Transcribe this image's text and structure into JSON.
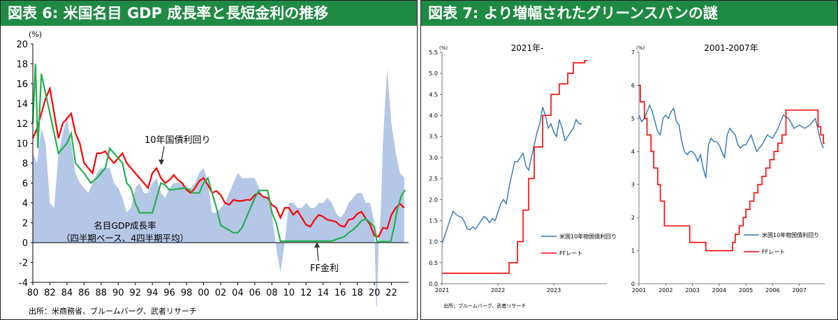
{
  "panels": {
    "left": {
      "title": "図表 6: 米国名目 GDP 成長率と長短金利の推移",
      "source": "出所：米商務省、ブルームバーグ、武者リサーチ"
    },
    "right": {
      "title": "図表 7: より増幅されたグリーンスパンの謎",
      "source": "出所：ブルームバーグ、武者リサーチ"
    }
  },
  "colors": {
    "title_bg": "#1f8a43",
    "gdp_area": "#b4c7e7",
    "bond": "#ff0000",
    "ff": "#22b14c",
    "bond_blue": "#2e75b6",
    "ff_red": "#ff0000"
  },
  "chart_data": [
    {
      "type": "area",
      "title": "",
      "ylabel": "(%)",
      "ylim": [
        -4,
        20
      ],
      "yticks": [
        "20",
        "18",
        "16",
        "14",
        "12",
        "10",
        "8",
        "6",
        "4",
        "2",
        "0",
        "-2",
        "-4"
      ],
      "xlim": [
        1980,
        2024
      ],
      "xticks": [
        "80",
        "82",
        "84",
        "86",
        "88",
        "90",
        "92",
        "94",
        "96",
        "98",
        "00",
        "02",
        "04",
        "06",
        "08",
        "10",
        "12",
        "14",
        "16",
        "18",
        "20",
        "22"
      ],
      "annotations": {
        "bond": "10年国債利回り",
        "gdp_line1": "名目GDP成長率",
        "gdp_line2": "（四半期ベース、4四半期平均）",
        "ff": "FF金利"
      },
      "series": [
        {
          "name": "名目GDP成長率（四半期ベース、4四半期平均）",
          "x": [
            1980,
            1980.5,
            1981,
            1981.5,
            1982,
            1982.5,
            1983,
            1983.5,
            1984,
            1984.5,
            1985,
            1985.5,
            1986,
            1986.5,
            1987,
            1987.5,
            1988,
            1988.5,
            1989,
            1989.5,
            1990,
            1990.5,
            1991,
            1991.5,
            1992,
            1992.5,
            1993,
            1993.5,
            1994,
            1994.5,
            1995,
            1995.5,
            1996,
            1996.5,
            1997,
            1997.5,
            1998,
            1998.5,
            1999,
            1999.5,
            2000,
            2000.5,
            2001,
            2001.5,
            2002,
            2002.5,
            2003,
            2003.5,
            2004,
            2004.5,
            2005,
            2005.5,
            2006,
            2006.5,
            2007,
            2007.5,
            2008,
            2008.3,
            2008.6,
            2009,
            2009.5,
            2010,
            2010.5,
            2011,
            2011.5,
            2012,
            2012.5,
            2013,
            2013.5,
            2014,
            2014.5,
            2015,
            2015.5,
            2016,
            2016.5,
            2017,
            2017.5,
            2018,
            2018.5,
            2019,
            2019.5,
            2020,
            2020.25,
            2020.5,
            2020.75,
            2021,
            2021.25,
            2021.5,
            2022,
            2022.5,
            2023,
            2023.5
          ],
          "values": [
            9,
            8,
            11.5,
            10,
            4,
            3.5,
            9,
            11,
            12.5,
            10,
            7,
            6,
            5.5,
            5,
            6,
            7,
            7.5,
            7.5,
            7.5,
            6,
            5.5,
            4.5,
            3,
            3.5,
            5.5,
            6,
            5,
            5,
            6,
            6.5,
            5,
            4.5,
            5.5,
            6,
            6,
            6,
            5.5,
            5.5,
            6,
            7,
            7.5,
            6,
            3,
            3,
            3.5,
            4,
            5,
            6,
            7,
            6.5,
            6.5,
            6.5,
            6.5,
            5.5,
            4.5,
            4.5,
            3,
            1,
            -1,
            -3,
            0,
            4,
            4,
            3.5,
            3.5,
            4,
            3.5,
            3.5,
            4,
            4,
            4.5,
            4,
            3,
            2.5,
            3,
            4,
            4.5,
            5,
            5,
            4,
            4,
            2,
            -8,
            0,
            3,
            10,
            14,
            17.5,
            12,
            9,
            7,
            6.5
          ]
        },
        {
          "name": "10年国債利回り",
          "x": [
            1980,
            1980.5,
            1981,
            1981.5,
            1982,
            1982.5,
            1983,
            1983.5,
            1984,
            1984.5,
            1985,
            1985.5,
            1986,
            1986.5,
            1987,
            1987.5,
            1988,
            1988.5,
            1989,
            1989.5,
            1990,
            1990.5,
            1991,
            1991.5,
            1992,
            1992.5,
            1993,
            1993.5,
            1994,
            1994.5,
            1995,
            1995.5,
            1996,
            1996.5,
            1997,
            1997.5,
            1998,
            1998.5,
            1999,
            1999.5,
            2000,
            2000.5,
            2001,
            2001.5,
            2002,
            2002.5,
            2003,
            2003.5,
            2004,
            2004.5,
            2005,
            2005.5,
            2006,
            2006.5,
            2007,
            2007.5,
            2008,
            2008.5,
            2009,
            2009.5,
            2010,
            2010.5,
            2011,
            2011.5,
            2012,
            2012.5,
            2013,
            2013.5,
            2014,
            2014.5,
            2015,
            2015.5,
            2016,
            2016.5,
            2017,
            2017.5,
            2018,
            2018.5,
            2019,
            2019.5,
            2020,
            2020.5,
            2021,
            2021.5,
            2022,
            2022.5,
            2023,
            2023.5
          ],
          "values": [
            10.5,
            11.5,
            13,
            14.5,
            15.5,
            13,
            10.5,
            12,
            12.5,
            13,
            11,
            10,
            8,
            7.5,
            7,
            9,
            9,
            9.2,
            8.5,
            8,
            8.5,
            9,
            8,
            7.5,
            7,
            6.5,
            6,
            5.5,
            7,
            7.5,
            6.5,
            6,
            6.3,
            6.8,
            6.3,
            6,
            5.3,
            5,
            5.5,
            6.2,
            6.5,
            5.8,
            5,
            5.2,
            4.8,
            4,
            3.8,
            4.3,
            4.2,
            4.2,
            4.3,
            4.3,
            4.8,
            5,
            4.6,
            4.5,
            3.8,
            3.5,
            2.5,
            3.5,
            3.5,
            2.8,
            3.2,
            2.5,
            1.8,
            1.6,
            2.3,
            2.8,
            2.6,
            2.3,
            2.2,
            2.1,
            1.7,
            1.6,
            2.3,
            2.4,
            2.9,
            3.1,
            2.4,
            1.8,
            0.7,
            0.6,
            1.5,
            1.4,
            2.8,
            3.5,
            3.9,
            3.5
          ]
        },
        {
          "name": "FF金利",
          "x": [
            1980,
            1980.3,
            1980.6,
            1981,
            1981.5,
            1982,
            1982.5,
            1983,
            1984,
            1984.5,
            1985,
            1986,
            1986.8,
            1987.5,
            1988.5,
            1989,
            1989.5,
            1990.5,
            1991,
            1991.5,
            1992,
            1992.5,
            1993,
            1994,
            1994.5,
            1995,
            1995.5,
            1996,
            1998,
            1998.8,
            1999.5,
            2000,
            2000.5,
            2001,
            2001.5,
            2002,
            2003,
            2003.5,
            2004,
            2004.5,
            2005,
            2005.5,
            2006,
            2006.5,
            2007.5,
            2008,
            2008.5,
            2009,
            2015,
            2015.8,
            2016.5,
            2017,
            2017.5,
            2018,
            2018.5,
            2019,
            2019.5,
            2020,
            2020.3,
            2021.9,
            2022,
            2022.3,
            2022.6,
            2022.9,
            2023.2,
            2023.6
          ],
          "values": [
            12,
            18,
            9.5,
            17,
            15,
            13,
            11,
            9,
            10,
            11,
            8,
            7,
            6,
            6.5,
            7.5,
            9.5,
            9,
            8,
            6,
            5.5,
            4,
            3,
            3,
            3,
            4.5,
            6,
            5.8,
            5.3,
            5.5,
            5,
            5,
            6,
            6.5,
            5,
            3.5,
            1.75,
            1.25,
            1,
            1,
            1.5,
            2.5,
            3.5,
            4.5,
            5.25,
            5.25,
            3,
            2,
            0.15,
            0.15,
            0.4,
            0.6,
            1,
            1.3,
            1.7,
            2.2,
            2.4,
            2,
            1.6,
            0.1,
            0.1,
            0.4,
            1.5,
            3,
            4,
            4.8,
            5.3
          ]
        }
      ]
    },
    {
      "type": "line",
      "title": "2021年-",
      "ylabel": "(%)",
      "ylim": [
        0,
        5.5
      ],
      "yticks": [
        "5.5",
        "5.0",
        "4.5",
        "4.0",
        "3.5",
        "3.0",
        "2.5",
        "2.0",
        "1.5",
        "1.0",
        "0.5",
        "0.0"
      ],
      "xlim": [
        2021.0,
        2023.95
      ],
      "xticks": [
        "2021",
        "2022",
        "2023"
      ],
      "series": [
        {
          "name": "米国10年物国債利回り",
          "x": [
            2021.0,
            2021.05,
            2021.1,
            2021.15,
            2021.2,
            2021.25,
            2021.3,
            2021.35,
            2021.4,
            2021.45,
            2021.5,
            2021.55,
            2021.6,
            2021.65,
            2021.7,
            2021.75,
            2021.8,
            2021.85,
            2021.9,
            2021.95,
            2022.0,
            2022.05,
            2022.1,
            2022.15,
            2022.2,
            2022.25,
            2022.3,
            2022.35,
            2022.4,
            2022.45,
            2022.5,
            2022.55,
            2022.6,
            2022.65,
            2022.7,
            2022.75,
            2022.8,
            2022.85,
            2022.9,
            2022.95,
            2023.0,
            2023.05,
            2023.1,
            2023.15,
            2023.2,
            2023.25,
            2023.3,
            2023.35,
            2023.4,
            2023.45,
            2023.5
          ],
          "values": [
            0.95,
            1.15,
            1.35,
            1.55,
            1.72,
            1.65,
            1.6,
            1.58,
            1.48,
            1.3,
            1.28,
            1.35,
            1.3,
            1.4,
            1.5,
            1.6,
            1.55,
            1.45,
            1.55,
            1.5,
            1.7,
            1.9,
            2.0,
            1.9,
            2.3,
            2.6,
            2.9,
            2.9,
            3.0,
            3.1,
            2.8,
            2.7,
            3.0,
            3.3,
            3.6,
            3.8,
            4.2,
            4.0,
            3.7,
            3.8,
            3.6,
            3.5,
            3.9,
            3.7,
            3.4,
            3.5,
            3.6,
            3.7,
            3.9,
            3.8,
            3.8
          ]
        },
        {
          "name": "FFレート",
          "x": [
            2021.0,
            2022.2,
            2022.2,
            2022.35,
            2022.35,
            2022.45,
            2022.45,
            2022.55,
            2022.55,
            2022.65,
            2022.65,
            2022.8,
            2022.8,
            2022.95,
            2022.95,
            2023.1,
            2023.1,
            2023.25,
            2023.25,
            2023.35,
            2023.35,
            2023.55,
            2023.55,
            2023.6
          ],
          "values": [
            0.25,
            0.25,
            0.5,
            0.5,
            1.0,
            1.0,
            1.75,
            1.75,
            2.5,
            2.5,
            3.25,
            3.25,
            4.0,
            4.0,
            4.5,
            4.5,
            4.75,
            4.75,
            5.0,
            5.0,
            5.25,
            5.25,
            5.3,
            5.3
          ]
        }
      ]
    },
    {
      "type": "line",
      "title": "2001-2007年",
      "ylabel": "(%)",
      "ylim": [
        0,
        7
      ],
      "yticks": [
        "7",
        "6",
        "5",
        "4",
        "3",
        "2",
        "1",
        "0"
      ],
      "xlim": [
        2001.0,
        2007.95
      ],
      "xticks": [
        "2001",
        "2002",
        "2003",
        "2004",
        "2005",
        "2006",
        "2007"
      ],
      "series": [
        {
          "name": "米国10年物国債利回り",
          "x": [
            2001.0,
            2001.1,
            2001.2,
            2001.3,
            2001.4,
            2001.5,
            2001.6,
            2001.7,
            2001.8,
            2001.9,
            2002.0,
            2002.1,
            2002.2,
            2002.3,
            2002.4,
            2002.5,
            2002.6,
            2002.7,
            2002.8,
            2002.9,
            2003.0,
            2003.1,
            2003.2,
            2003.3,
            2003.4,
            2003.5,
            2003.6,
            2003.7,
            2003.8,
            2003.9,
            2004.0,
            2004.1,
            2004.2,
            2004.3,
            2004.4,
            2004.5,
            2004.6,
            2004.7,
            2004.8,
            2004.9,
            2005.0,
            2005.2,
            2005.4,
            2005.6,
            2005.8,
            2006.0,
            2006.2,
            2006.4,
            2006.6,
            2006.8,
            2007.0,
            2007.2,
            2007.4,
            2007.6,
            2007.8,
            2007.9
          ],
          "values": [
            5.1,
            4.9,
            5.0,
            5.2,
            5.4,
            5.2,
            4.9,
            4.6,
            4.5,
            5.0,
            5.1,
            5.0,
            5.2,
            5.3,
            4.9,
            4.8,
            4.3,
            4.0,
            3.9,
            4.0,
            4.0,
            3.9,
            3.7,
            3.9,
            3.5,
            3.2,
            4.2,
            4.4,
            4.3,
            4.3,
            4.2,
            4.0,
            3.8,
            4.5,
            4.7,
            4.6,
            4.5,
            4.2,
            4.1,
            4.2,
            4.2,
            4.5,
            4.0,
            4.2,
            4.5,
            4.4,
            4.7,
            5.1,
            5.0,
            4.7,
            4.8,
            4.7,
            4.8,
            5.0,
            4.3,
            4.1
          ]
        },
        {
          "name": "FFレート",
          "x": [
            2001.0,
            2001.05,
            2001.05,
            2001.2,
            2001.2,
            2001.3,
            2001.3,
            2001.45,
            2001.45,
            2001.55,
            2001.55,
            2001.7,
            2001.7,
            2001.8,
            2001.8,
            2001.95,
            2001.95,
            2002.9,
            2002.9,
            2003.5,
            2003.5,
            2004.5,
            2004.5,
            2004.6,
            2004.6,
            2004.75,
            2004.75,
            2004.9,
            2004.9,
            2005.0,
            2005.0,
            2005.15,
            2005.15,
            2005.3,
            2005.3,
            2005.45,
            2005.45,
            2005.6,
            2005.6,
            2005.75,
            2005.75,
            2005.9,
            2005.9,
            2006.05,
            2006.05,
            2006.2,
            2006.2,
            2006.35,
            2006.35,
            2006.5,
            2006.5,
            2007.7,
            2007.7,
            2007.8,
            2007.8,
            2007.9,
            2007.9,
            2007.95
          ],
          "values": [
            6.0,
            6.0,
            5.5,
            5.5,
            5.0,
            5.0,
            4.5,
            4.5,
            4.0,
            4.0,
            3.5,
            3.5,
            3.0,
            3.0,
            2.5,
            2.5,
            1.75,
            1.75,
            1.25,
            1.25,
            1.0,
            1.0,
            1.25,
            1.25,
            1.5,
            1.5,
            1.75,
            1.75,
            2.0,
            2.0,
            2.25,
            2.25,
            2.5,
            2.5,
            2.75,
            2.75,
            3.0,
            3.0,
            3.25,
            3.25,
            3.5,
            3.5,
            3.75,
            3.75,
            4.0,
            4.0,
            4.25,
            4.25,
            4.5,
            4.5,
            5.25,
            5.25,
            4.75,
            4.75,
            4.5,
            4.5,
            4.25,
            4.25
          ]
        }
      ]
    }
  ]
}
